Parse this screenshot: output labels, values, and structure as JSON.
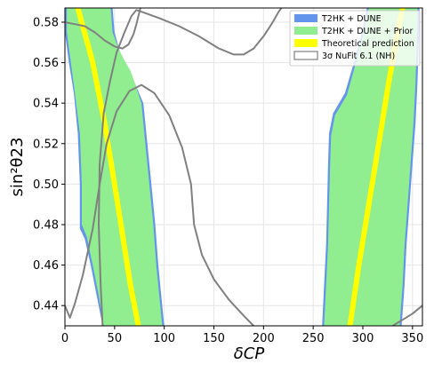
{
  "chart_data": {
    "type": "contour",
    "xlabel": "δCP",
    "ylabel": "sin²θ23",
    "xlim": [
      0,
      360
    ],
    "ylim": [
      0.43,
      0.587
    ],
    "xticks": [
      0,
      50,
      100,
      150,
      200,
      250,
      300,
      350
    ],
    "yticks": [
      0.44,
      0.46,
      0.48,
      0.5,
      0.52,
      0.54,
      0.56,
      0.58
    ],
    "grid": true,
    "legend_position": "top-right",
    "colors": {
      "t2hk_dune": "#6495ED",
      "t2hk_dune_prior": "#90EE90",
      "theory": "#FFFF00",
      "nufit": "#808080"
    },
    "series": [
      {
        "name": "T2HK + DUNE",
        "kind": "region",
        "regions": [
          {
            "left": [
              [
                0,
                0.587
              ],
              [
                0,
                0.575
              ],
              [
                4,
                0.56
              ],
              [
                9,
                0.545
              ],
              [
                13,
                0.525
              ],
              [
                15,
                0.5
              ],
              [
                15,
                0.478
              ],
              [
                20,
                0.473
              ],
              [
                26,
                0.46
              ],
              [
                32,
                0.445
              ],
              [
                38,
                0.43
              ]
            ],
            "right": [
              [
                48,
                0.587
              ],
              [
                50,
                0.575
              ],
              [
                55,
                0.566
              ],
              [
                60,
                0.56
              ],
              [
                66,
                0.555
              ],
              [
                72,
                0.548
              ],
              [
                79,
                0.54
              ],
              [
                83,
                0.52
              ],
              [
                87,
                0.5
              ],
              [
                91,
                0.48
              ],
              [
                94,
                0.46
              ],
              [
                97,
                0.445
              ],
              [
                100,
                0.43
              ]
            ]
          },
          {
            "left": [
              [
                259,
                0.43
              ],
              [
                261,
                0.45
              ],
              [
                263,
                0.47
              ],
              [
                264,
                0.49
              ],
              [
                265,
                0.51
              ],
              [
                266,
                0.525
              ],
              [
                270,
                0.535
              ],
              [
                282,
                0.545
              ],
              [
                291,
                0.56
              ],
              [
                299,
                0.575
              ],
              [
                304,
                0.587
              ]
            ],
            "right": [
              [
                339,
                0.43
              ],
              [
                342,
                0.45
              ],
              [
                344,
                0.47
              ],
              [
                347,
                0.49
              ],
              [
                350,
                0.51
              ],
              [
                353,
                0.53
              ],
              [
                355,
                0.55
              ],
              [
                356,
                0.565
              ],
              [
                357,
                0.58
              ],
              [
                357,
                0.587
              ]
            ]
          }
        ]
      },
      {
        "name": "T2HK + DUNE + Prior",
        "kind": "region",
        "regions": [
          {
            "left": [
              [
                2,
                0.587
              ],
              [
                2,
                0.575
              ],
              [
                6,
                0.56
              ],
              [
                10,
                0.545
              ],
              [
                15,
                0.525
              ],
              [
                17,
                0.5
              ],
              [
                17,
                0.48
              ],
              [
                22,
                0.474
              ],
              [
                28,
                0.46
              ],
              [
                34,
                0.445
              ],
              [
                39,
                0.43
              ]
            ],
            "right": [
              [
                46,
                0.587
              ],
              [
                48,
                0.575
              ],
              [
                54,
                0.567
              ],
              [
                60,
                0.561
              ],
              [
                66,
                0.556
              ],
              [
                71,
                0.549
              ],
              [
                77,
                0.54
              ],
              [
                81,
                0.52
              ],
              [
                85,
                0.5
              ],
              [
                89,
                0.48
              ],
              [
                92,
                0.46
              ],
              [
                95,
                0.445
              ],
              [
                98,
                0.43
              ]
            ]
          },
          {
            "left": [
              [
                261,
                0.43
              ],
              [
                263,
                0.45
              ],
              [
                265,
                0.47
              ],
              [
                266,
                0.49
              ],
              [
                267,
                0.51
              ],
              [
                268,
                0.524
              ],
              [
                272,
                0.534
              ],
              [
                284,
                0.544
              ],
              [
                293,
                0.56
              ],
              [
                301,
                0.575
              ],
              [
                306,
                0.587
              ]
            ],
            "right": [
              [
                337,
                0.43
              ],
              [
                340,
                0.45
              ],
              [
                342,
                0.47
              ],
              [
                345,
                0.49
              ],
              [
                348,
                0.51
              ],
              [
                351,
                0.53
              ],
              [
                353,
                0.55
              ],
              [
                354,
                0.565
              ],
              [
                355,
                0.58
              ],
              [
                355,
                0.587
              ]
            ]
          }
        ]
      },
      {
        "name": "Theoretical prediction",
        "kind": "line",
        "curves": [
          [
            [
              13,
              0.587
            ],
            [
              28,
              0.56
            ],
            [
              40,
              0.53
            ],
            [
              50,
              0.5
            ],
            [
              58,
              0.475
            ],
            [
              66,
              0.45
            ],
            [
              74,
              0.43
            ]
          ],
          [
            [
              287,
              0.43
            ],
            [
              296,
              0.46
            ],
            [
              306,
              0.49
            ],
            [
              316,
              0.52
            ],
            [
              326,
              0.55
            ],
            [
              335,
              0.575
            ],
            [
              340,
              0.587
            ]
          ]
        ]
      },
      {
        "name": "3σ NuFit 6.1 (NH)",
        "kind": "contour",
        "curves": [
          [
            [
              0,
              0.44
            ],
            [
              5,
              0.434
            ],
            [
              10,
              0.441
            ],
            [
              18,
              0.455
            ],
            [
              28,
              0.478
            ],
            [
              35,
              0.5
            ],
            [
              42,
              0.52
            ],
            [
              52,
              0.536
            ],
            [
              65,
              0.546
            ],
            [
              77,
              0.549
            ],
            [
              90,
              0.545
            ],
            [
              105,
              0.534
            ],
            [
              118,
              0.518
            ],
            [
              127,
              0.5
            ],
            [
              130,
              0.48
            ],
            [
              138,
              0.465
            ],
            [
              150,
              0.453
            ],
            [
              165,
              0.443
            ],
            [
              180,
              0.435
            ],
            [
              190,
              0.43
            ]
          ],
          [
            [
              38,
              0.43
            ],
            [
              36,
              0.45
            ],
            [
              34,
              0.48
            ],
            [
              35,
              0.51
            ],
            [
              39,
              0.535
            ],
            [
              45,
              0.55
            ],
            [
              52,
              0.565
            ],
            [
              60,
              0.575
            ],
            [
              67,
              0.583
            ],
            [
              72,
              0.586
            ],
            [
              78,
              0.585
            ],
            [
              95,
              0.582
            ],
            [
              115,
              0.578
            ],
            [
              135,
              0.573
            ],
            [
              155,
              0.567
            ],
            [
              170,
              0.564
            ],
            [
              180,
              0.564
            ],
            [
              190,
              0.567
            ],
            [
              200,
              0.573
            ],
            [
              208,
              0.579
            ],
            [
              215,
              0.585
            ],
            [
              218,
              0.587
            ]
          ],
          [
            [
              0,
              0.58
            ],
            [
              10,
              0.579
            ],
            [
              20,
              0.578
            ],
            [
              30,
              0.575
            ],
            [
              40,
              0.571
            ],
            [
              50,
              0.568
            ],
            [
              58,
              0.567
            ],
            [
              64,
              0.569
            ],
            [
              69,
              0.574
            ],
            [
              72,
              0.579
            ],
            [
              74,
              0.583
            ],
            [
              76,
              0.587
            ]
          ],
          [
            [
              330,
              0.43
            ],
            [
              340,
              0.433
            ],
            [
              350,
              0.436
            ],
            [
              360,
              0.44
            ]
          ]
        ]
      }
    ]
  }
}
